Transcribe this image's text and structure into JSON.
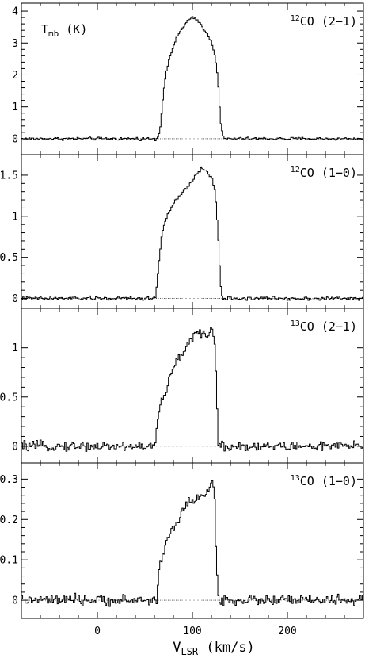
{
  "chart_data": {
    "type": "line",
    "style": "step",
    "shared_x": true,
    "xlabel_main": "V",
    "xlabel_sub": "LSR",
    "xlabel_unit": " (km/s)",
    "xlim": [
      -80,
      280
    ],
    "x_ticks": [
      0,
      100,
      200
    ],
    "x_tick_labels": [
      "0",
      "100",
      "200"
    ],
    "ylabel_main": "T",
    "ylabel_sub": "mb",
    "ylabel_unit": " (K)",
    "panels": [
      {
        "name_sup": "12",
        "name_main": "CO (2−1)",
        "ylim": [
          -0.5,
          4.25
        ],
        "y_ticks": [
          0,
          1,
          2,
          3,
          4
        ],
        "y_tick_labels": [
          "0",
          "1",
          "2",
          "3",
          "4"
        ],
        "noise": 0.03,
        "profile": [
          [
            -80,
            0
          ],
          [
            63,
            0
          ],
          [
            66,
            0.3
          ],
          [
            70,
            1.6
          ],
          [
            75,
            2.45
          ],
          [
            80,
            2.9
          ],
          [
            85,
            3.25
          ],
          [
            90,
            3.5
          ],
          [
            95,
            3.7
          ],
          [
            100,
            3.78
          ],
          [
            105,
            3.72
          ],
          [
            110,
            3.55
          ],
          [
            115,
            3.3
          ],
          [
            120,
            3.05
          ],
          [
            124,
            2.6
          ],
          [
            127,
            1.8
          ],
          [
            130,
            0.4
          ],
          [
            133,
            0
          ],
          [
            280,
            0
          ]
        ]
      },
      {
        "name_sup": "12",
        "name_main": "CO (1−0)",
        "ylim": [
          -0.12,
          1.75
        ],
        "y_ticks": [
          0,
          0.5,
          1,
          1.5
        ],
        "y_tick_labels": [
          "0",
          "0.5",
          "1",
          "1.5"
        ],
        "noise": 0.015,
        "profile": [
          [
            -80,
            0
          ],
          [
            61,
            0
          ],
          [
            64,
            0.35
          ],
          [
            68,
            0.8
          ],
          [
            73,
            1.0
          ],
          [
            80,
            1.15
          ],
          [
            88,
            1.27
          ],
          [
            95,
            1.35
          ],
          [
            100,
            1.43
          ],
          [
            105,
            1.53
          ],
          [
            110,
            1.58
          ],
          [
            115,
            1.55
          ],
          [
            120,
            1.48
          ],
          [
            124,
            1.3
          ],
          [
            127,
            0.8
          ],
          [
            130,
            0.1
          ],
          [
            132,
            0
          ],
          [
            280,
            0
          ]
        ]
      },
      {
        "name_sup": "13",
        "name_main": "CO (2−1)",
        "ylim": [
          -0.17,
          1.4
        ],
        "y_ticks": [
          0,
          0.5,
          1
        ],
        "y_tick_labels": [
          "0",
          "0.5",
          "1"
        ],
        "noise": 0.03,
        "profile": [
          [
            -80,
            0
          ],
          [
            61,
            0
          ],
          [
            63,
            0.25
          ],
          [
            67,
            0.45
          ],
          [
            72,
            0.55
          ],
          [
            77,
            0.72
          ],
          [
            83,
            0.85
          ],
          [
            90,
            0.95
          ],
          [
            95,
            1.05
          ],
          [
            100,
            1.12
          ],
          [
            105,
            1.14
          ],
          [
            110,
            1.12
          ],
          [
            115,
            1.13
          ],
          [
            120,
            1.18
          ],
          [
            123,
            1.15
          ],
          [
            125,
            0.7
          ],
          [
            127,
            0.05
          ],
          [
            129,
            0
          ],
          [
            280,
            0
          ]
        ]
      },
      {
        "name_sup": "13",
        "name_main": "CO (1−0)",
        "ylim": [
          -0.045,
          0.34
        ],
        "y_ticks": [
          0,
          0.1,
          0.2,
          0.3
        ],
        "y_tick_labels": [
          "0",
          "0.1",
          "0.2",
          "0.3"
        ],
        "noise": 0.008,
        "profile": [
          [
            -80,
            0
          ],
          [
            63,
            0
          ],
          [
            65,
            0.08
          ],
          [
            69,
            0.12
          ],
          [
            74,
            0.15
          ],
          [
            80,
            0.18
          ],
          [
            88,
            0.21
          ],
          [
            95,
            0.24
          ],
          [
            100,
            0.25
          ],
          [
            107,
            0.255
          ],
          [
            113,
            0.26
          ],
          [
            118,
            0.27
          ],
          [
            121,
            0.3
          ],
          [
            123,
            0.28
          ],
          [
            125,
            0.12
          ],
          [
            127,
            0.01
          ],
          [
            129,
            0
          ],
          [
            280,
            0
          ]
        ]
      }
    ]
  }
}
